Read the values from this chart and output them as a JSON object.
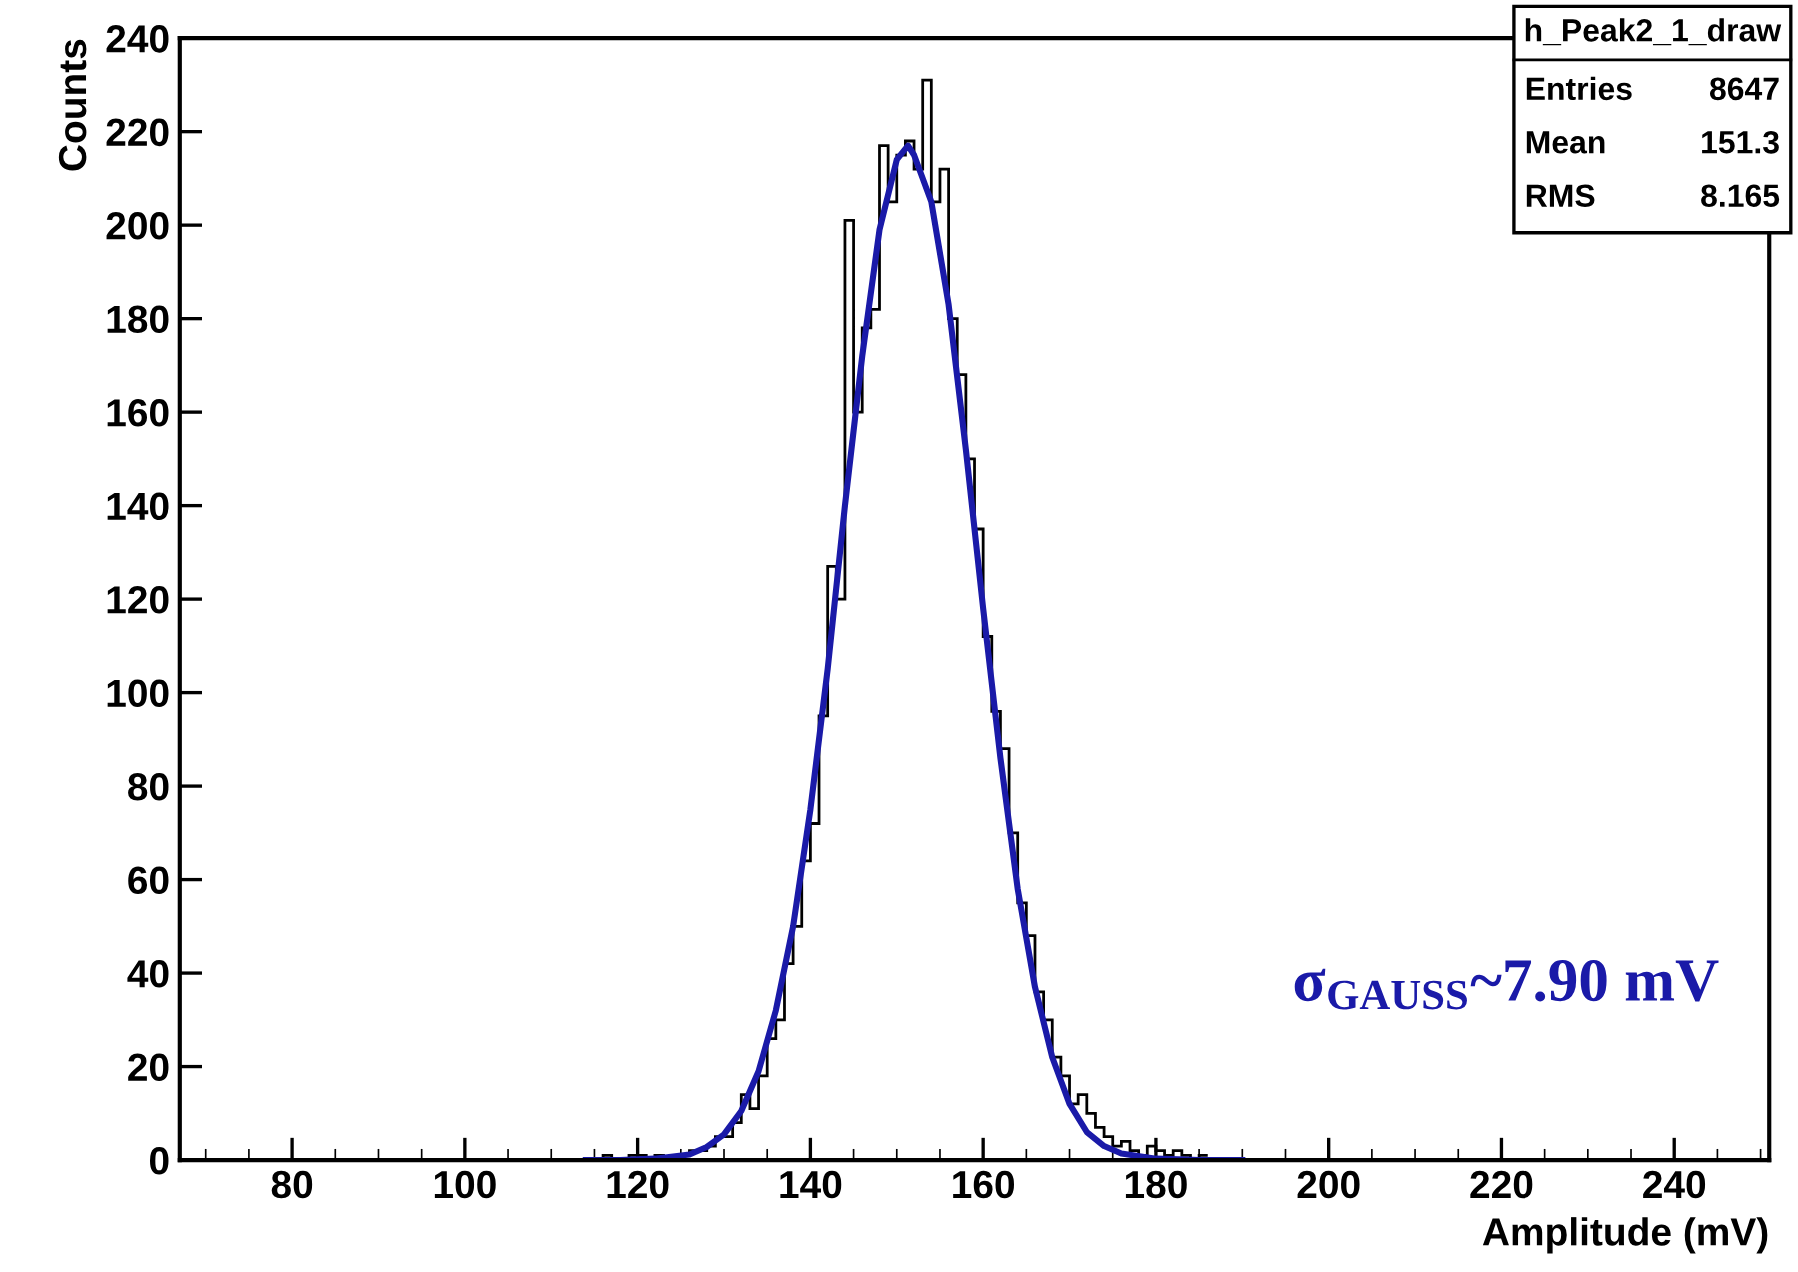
{
  "chart_data": {
    "type": "histogram",
    "xlabel": "Amplitude (mV)",
    "ylabel": "Counts",
    "bins": [
      115,
      116,
      117,
      118,
      119,
      120,
      121,
      122,
      123,
      124,
      125,
      126,
      127,
      128,
      129,
      130,
      131,
      132,
      133,
      134,
      135,
      136,
      137,
      138,
      139,
      140,
      141,
      142,
      143,
      144,
      145,
      146,
      147,
      148,
      149,
      150,
      151,
      152,
      153,
      154,
      155,
      156,
      157,
      158,
      159,
      160,
      161,
      162,
      163,
      164,
      165,
      166,
      167,
      168,
      169,
      170,
      171,
      172,
      173,
      174,
      175,
      176,
      177,
      178,
      179,
      180,
      181,
      182,
      183,
      184,
      185,
      186
    ],
    "values": [
      0,
      1,
      0,
      0,
      1,
      1,
      0,
      1,
      0,
      1,
      1,
      2,
      2,
      3,
      5,
      5,
      8,
      14,
      11,
      18,
      26,
      30,
      42,
      50,
      64,
      72,
      95,
      127,
      120,
      201,
      160,
      178,
      182,
      217,
      205,
      215,
      218,
      212,
      231,
      205,
      212,
      180,
      168,
      150,
      135,
      112,
      96,
      88,
      70,
      55,
      48,
      36,
      30,
      22,
      18,
      12,
      14,
      10,
      7,
      5,
      3,
      4,
      2,
      1,
      3,
      2,
      1,
      2,
      1,
      0,
      1
    ],
    "color": "#000000",
    "series": [
      {
        "type": "line",
        "color": "#1a1aa8",
        "x": [
          114,
          118,
          122,
          126,
          128,
          130,
          132,
          134,
          136,
          138,
          140,
          142,
          144,
          146,
          148,
          150,
          151.3,
          152,
          154,
          156,
          158,
          160,
          162,
          164,
          166,
          168,
          170,
          172,
          174,
          176,
          180,
          185,
          190
        ],
        "values": [
          0,
          0,
          0.3,
          1.2,
          2.8,
          5.5,
          10.5,
          19,
          32,
          50,
          75,
          105,
          140,
          172,
          199,
          214,
          217,
          215,
          205,
          183,
          152,
          118,
          86,
          58,
          37,
          22,
          12,
          6,
          3,
          1.4,
          0.3,
          0,
          0
        ]
      }
    ],
    "xlim": [
      67,
      251
    ],
    "ylim": [
      0,
      240
    ],
    "xticks": [
      80,
      100,
      120,
      140,
      160,
      180,
      200,
      220,
      240
    ],
    "yticks": [
      0,
      20,
      40,
      60,
      80,
      100,
      120,
      140,
      160,
      180,
      200,
      220,
      240
    ],
    "grid": false,
    "legend": false,
    "annotations": [
      "h_Peak2_1_draw",
      "Entries 8647",
      "Mean 151.3",
      "RMS 8.165",
      "σ$_{GAUSS}$~7.90 mV"
    ]
  }
}
